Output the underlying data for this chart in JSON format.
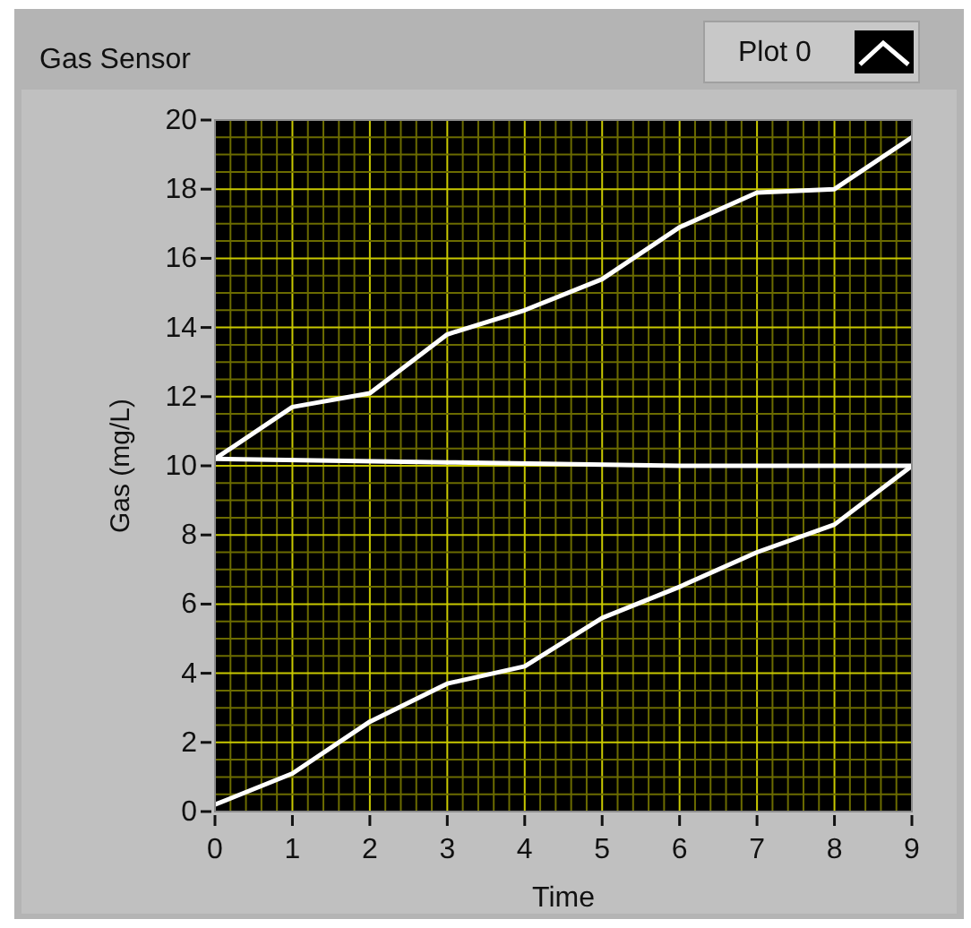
{
  "chart_data": {
    "type": "line",
    "title": "Gas Sensor",
    "xlabel": "Time",
    "ylabel": "Gas (mg/L)",
    "xlim": [
      0,
      9
    ],
    "xticks": [
      0,
      {
        "value": 0.2,
        "label": null
      },
      {
        "value": 0.4,
        "label": null
      },
      {
        "value": 0.6,
        "label": null
      },
      {
        "value": 0.8,
        "label": null
      },
      1,
      {
        "value": 1.2,
        "label": null
      },
      {
        "value": 1.4,
        "label": null
      },
      {
        "value": 1.6,
        "label": null
      },
      {
        "value": 1.8,
        "label": null
      },
      2,
      {
        "value": 2.2,
        "label": null
      },
      {
        "value": 2.4,
        "label": null
      },
      {
        "value": 2.6,
        "label": null
      },
      {
        "value": 2.8,
        "label": null
      },
      3,
      {
        "value": 3.2,
        "label": null
      },
      {
        "value": 3.4,
        "label": null
      },
      {
        "value": 3.6,
        "label": null
      },
      {
        "value": 3.8,
        "label": null
      },
      4,
      {
        "value": 4.2,
        "label": null
      },
      {
        "value": 4.4,
        "label": null
      },
      {
        "value": 4.6,
        "label": null
      },
      {
        "value": 4.8,
        "label": null
      },
      5,
      {
        "value": 5.2,
        "label": null
      },
      {
        "value": 5.4,
        "label": null
      },
      {
        "value": 5.6,
        "label": null
      },
      {
        "value": 5.8,
        "label": null
      },
      6,
      {
        "value": 6.2,
        "label": null
      },
      {
        "value": 6.4,
        "label": null
      },
      {
        "value": 6.6,
        "label": null
      },
      {
        "value": 6.8,
        "label": null
      },
      7,
      {
        "value": 7.2,
        "label": null
      },
      {
        "value": 7.4,
        "label": null
      },
      {
        "value": 7.6,
        "label": null
      },
      {
        "value": 7.8,
        "label": null
      },
      8,
      {
        "value": 8.2,
        "label": null
      },
      {
        "value": 8.4,
        "label": null
      },
      {
        "value": 8.6,
        "label": null
      },
      {
        "value": 8.8,
        "label": null
      },
      9
    ],
    "ylim": [
      0,
      20
    ],
    "yticks": [
      0,
      {
        "value": 0.5,
        "label": null
      },
      {
        "value": 1,
        "label": null
      },
      {
        "value": 1.5,
        "label": null
      },
      2,
      {
        "value": 2.5,
        "label": null
      },
      {
        "value": 3,
        "label": null
      },
      {
        "value": 3.5,
        "label": null
      },
      4,
      {
        "value": 4.5,
        "label": null
      },
      {
        "value": 5,
        "label": null
      },
      {
        "value": 5.5,
        "label": null
      },
      6,
      {
        "value": 6.5,
        "label": null
      },
      {
        "value": 7,
        "label": null
      },
      {
        "value": 7.5,
        "label": null
      },
      8,
      {
        "value": 8.5,
        "label": null
      },
      {
        "value": 9,
        "label": null
      },
      {
        "value": 9.5,
        "label": null
      },
      10,
      {
        "value": 10.5,
        "label": null
      },
      {
        "value": 11,
        "label": null
      },
      {
        "value": 11.5,
        "label": null
      },
      12,
      {
        "value": 12.5,
        "label": null
      },
      {
        "value": 13,
        "label": null
      },
      {
        "value": 13.5,
        "label": null
      },
      14,
      {
        "value": 14.5,
        "label": null
      },
      {
        "value": 15,
        "label": null
      },
      {
        "value": 15.5,
        "label": null
      },
      16,
      {
        "value": 16.5,
        "label": null
      },
      {
        "value": 17,
        "label": null
      },
      {
        "value": 17.5,
        "label": null
      },
      18,
      {
        "value": 18.5,
        "label": null
      },
      {
        "value": 19,
        "label": null
      },
      {
        "value": 19.5,
        "label": null
      },
      20
    ],
    "grid": true,
    "legend": "top right",
    "marker": "none",
    "line_style": "solid",
    "series": [
      {
        "name": "Plot 0",
        "color": "#ffffff",
        "x": [
          0,
          1,
          2,
          3,
          4,
          5,
          6,
          7,
          8,
          9
        ],
        "values": [
          0.2,
          1.1,
          2.6,
          3.7,
          4.2,
          5.6,
          6.5,
          7.5,
          8.3,
          10.0
        ]
      },
      {
        "color": "#ffffff",
        "x": [
          0,
          3,
          6,
          9
        ],
        "values": [
          10.2,
          10.1,
          10.0,
          10.0
        ]
      },
      {
        "color": "#ffffff",
        "x": [
          0,
          1,
          2,
          3,
          4,
          5,
          6,
          7,
          8,
          9
        ],
        "values": [
          10.2,
          11.7,
          12.1,
          13.8,
          14.5,
          15.4,
          16.9,
          17.9,
          18.0,
          19.5
        ]
      }
    ]
  }
}
